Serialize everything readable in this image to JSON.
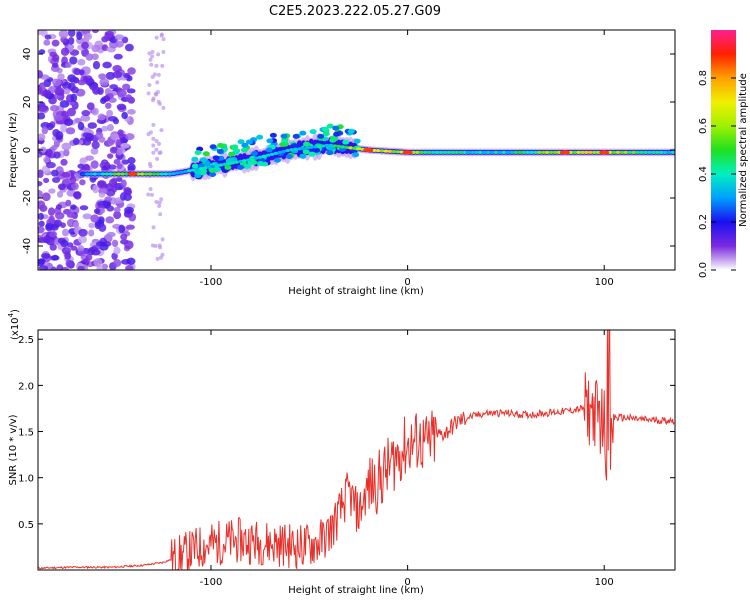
{
  "title": "C2E5.2023.222.05.27.G09",
  "colorbar": {
    "label": "Normalized spectral amplitude",
    "ticks": [
      "0.0",
      "0.2",
      "0.4",
      "0.6",
      "0.8"
    ],
    "tick_values": [
      0.0,
      0.2,
      0.4,
      0.6,
      0.8
    ],
    "range": [
      0,
      1
    ]
  },
  "chart_data": [
    {
      "type": "heatmap",
      "xlabel": "Height of straight line (km)",
      "ylabel": "Frequency (Hz)",
      "xlim": [
        -188,
        136
      ],
      "ylim": [
        -50,
        50
      ],
      "xticks": [
        -100,
        0,
        100
      ],
      "xtick_labels": [
        "-100",
        "0",
        "100"
      ],
      "yticks": [
        -40,
        -20,
        0,
        20,
        40
      ],
      "ytick_labels": [
        "-40",
        "-20",
        "0",
        "20",
        "40"
      ],
      "description_points": [
        {
          "x": -165,
          "y": -10,
          "v": 0.3
        },
        {
          "x": -140,
          "y": -10,
          "v": 0.7
        },
        {
          "x": -120,
          "y": -10,
          "v": 0.45
        },
        {
          "x": -100,
          "y": -7,
          "v": 0.4
        },
        {
          "x": -80,
          "y": -4,
          "v": 0.45
        },
        {
          "x": -60,
          "y": 0,
          "v": 0.4
        },
        {
          "x": -40,
          "y": 2,
          "v": 0.45
        },
        {
          "x": -20,
          "y": 0,
          "v": 0.85
        },
        {
          "x": 0,
          "y": -1,
          "v": 0.7
        },
        {
          "x": 20,
          "y": -1,
          "v": 0.45
        },
        {
          "x": 50,
          "y": -1,
          "v": 0.45
        },
        {
          "x": 80,
          "y": -1,
          "v": 0.7
        },
        {
          "x": 100,
          "y": -1,
          "v": 0.8
        },
        {
          "x": 130,
          "y": -1,
          "v": 0.4
        }
      ]
    },
    {
      "type": "line",
      "xlabel": "Height of straight line (km)",
      "ylabel": "SNR (10 * v/v)",
      "y_multiplier": "(x10",
      "y_multiplier_exp": "4",
      "y_multiplier_close": ")",
      "xlim": [
        -188,
        136
      ],
      "ylim": [
        0,
        2.6
      ],
      "xticks": [
        -100,
        0,
        100
      ],
      "xtick_labels": [
        "-100",
        "0",
        "100"
      ],
      "yticks": [
        0.5,
        1.0,
        1.5,
        2.0,
        2.5
      ],
      "ytick_labels": [
        "0.5",
        "1.0",
        "1.5",
        "2.0",
        "2.5"
      ],
      "series": [
        {
          "color": "#e8302a",
          "x": [
            -188,
            -170,
            -150,
            -135,
            -125,
            -115,
            -105,
            -95,
            -85,
            -75,
            -65,
            -55,
            -45,
            -40,
            -35,
            -30,
            -25,
            -20,
            -15,
            -10,
            -5,
            0,
            5,
            10,
            15,
            20,
            25,
            30,
            40,
            50,
            60,
            70,
            80,
            90,
            95,
            100,
            102,
            105,
            110,
            120,
            130,
            136
          ],
          "y": [
            0.02,
            0.03,
            0.03,
            0.05,
            0.08,
            0.15,
            0.25,
            0.3,
            0.32,
            0.3,
            0.28,
            0.25,
            0.3,
            0.4,
            0.6,
            0.85,
            0.6,
            0.9,
            0.95,
            1.1,
            1.25,
            1.35,
            1.4,
            1.35,
            1.45,
            1.5,
            1.6,
            1.65,
            1.7,
            1.7,
            1.68,
            1.7,
            1.72,
            1.75,
            1.72,
            1.6,
            1.0,
            1.65,
            1.65,
            1.63,
            1.62,
            1.62
          ]
        }
      ]
    }
  ]
}
